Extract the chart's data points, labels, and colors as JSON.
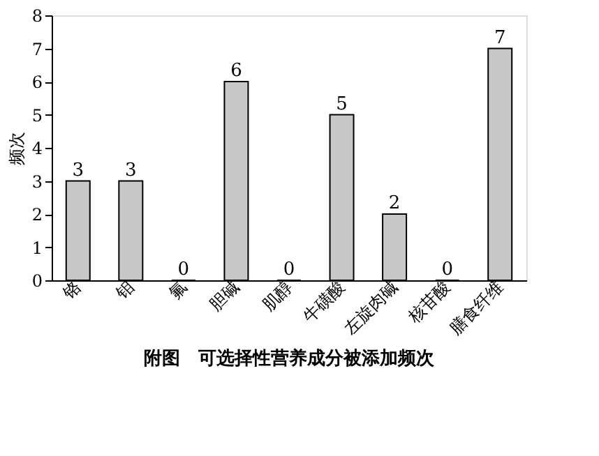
{
  "chart_data": {
    "type": "bar",
    "title": "附图　可选择性营养成分被添加频次",
    "ylabel": "频次",
    "categories": [
      "铬",
      "钼",
      "氟",
      "胆碱",
      "肌醇",
      "牛磺酸",
      "左旋肉碱",
      "核苷酸",
      "膳食纤维"
    ],
    "values": [
      3,
      3,
      0,
      6,
      0,
      5,
      2,
      0,
      7
    ],
    "color": "#c8c8c8",
    "ylim": [
      0,
      8
    ],
    "yticks": [
      0,
      1,
      2,
      3,
      4,
      5,
      6,
      7,
      8
    ],
    "grid": false,
    "data_labels": true
  }
}
